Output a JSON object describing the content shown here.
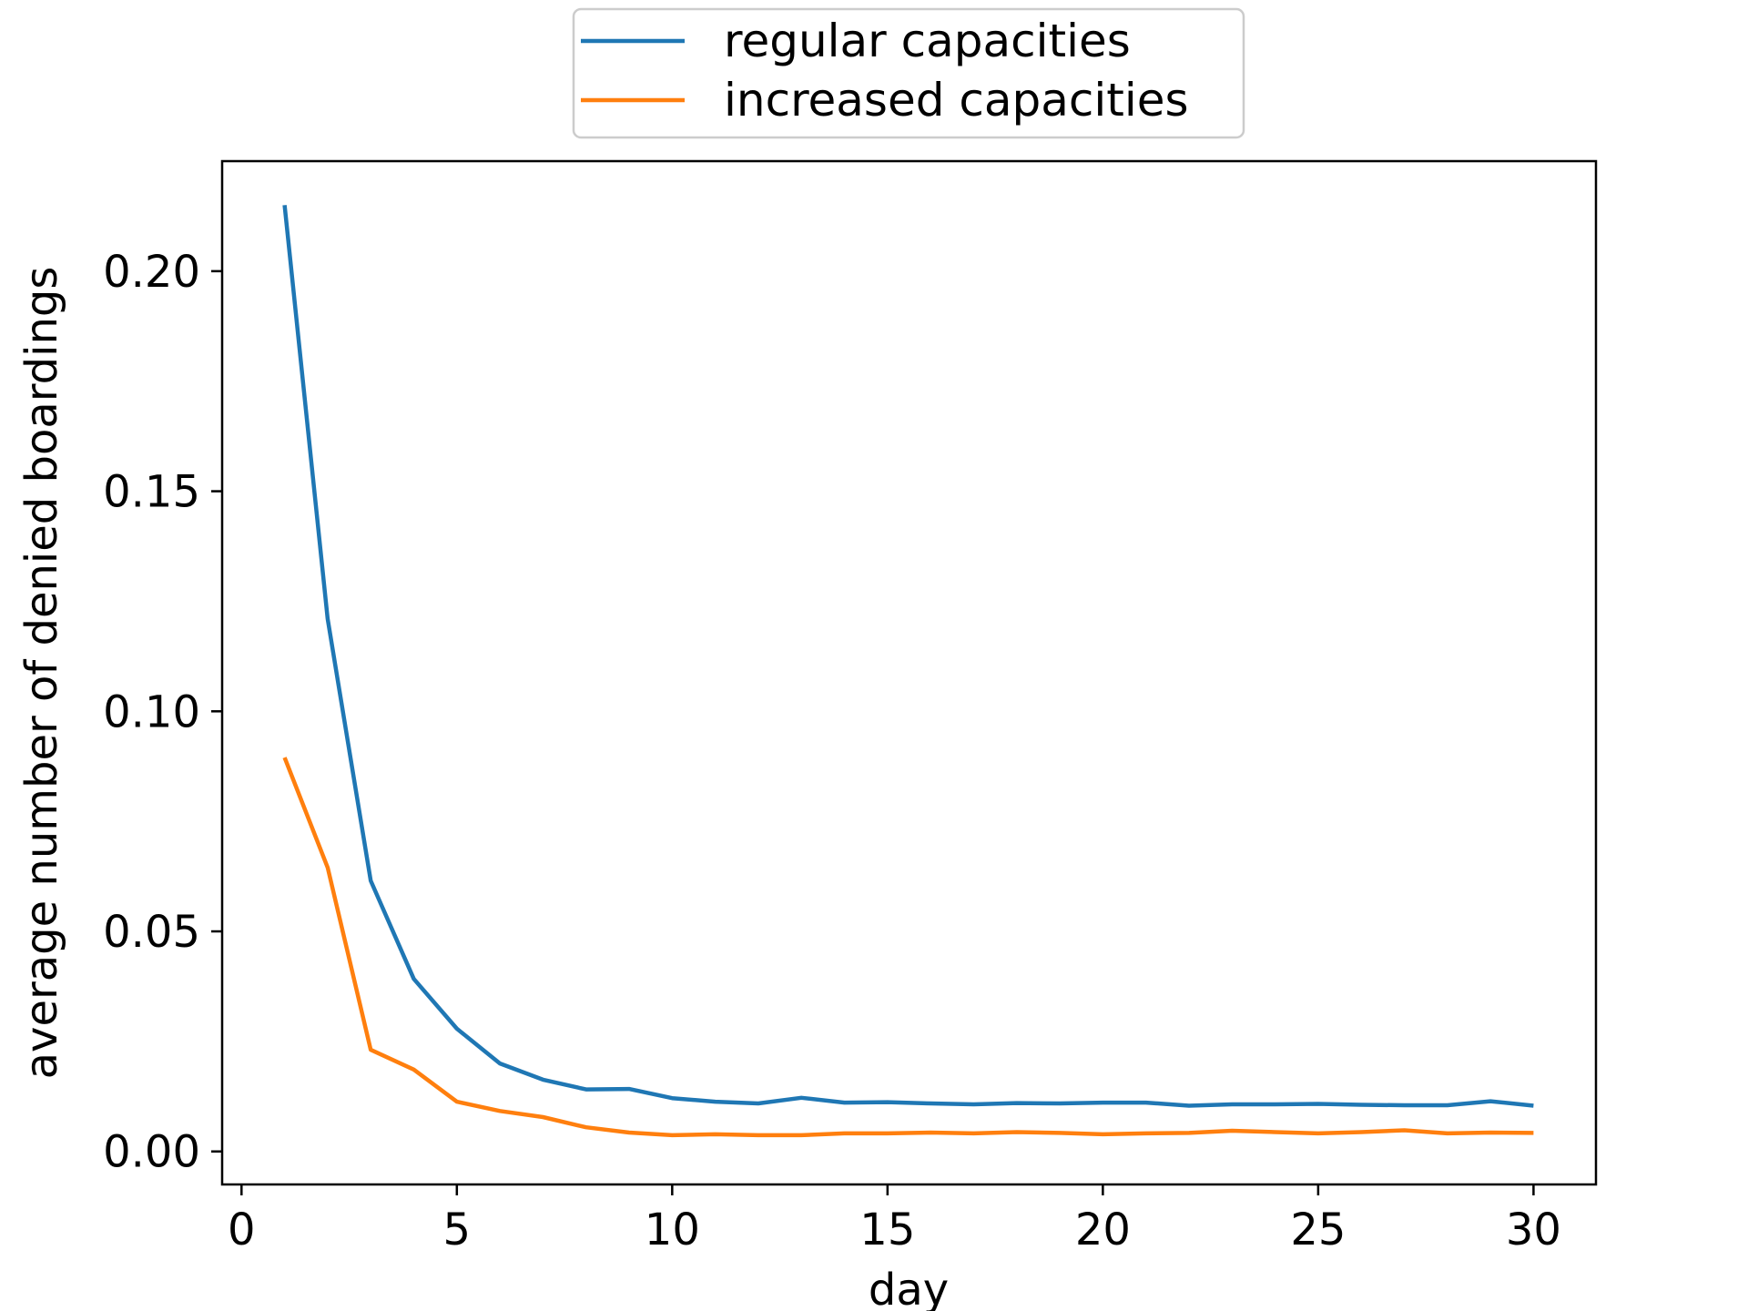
{
  "chart_data": {
    "type": "line",
    "xlabel": "day",
    "ylabel": "average number of denied boardings",
    "xlim": [
      -0.45,
      31.45
    ],
    "ylim": [
      -0.0075,
      0.225
    ],
    "xticks": [
      0,
      5,
      10,
      15,
      20,
      25,
      30
    ],
    "xtick_labels": [
      "0",
      "5",
      "10",
      "15",
      "20",
      "25",
      "30"
    ],
    "yticks": [
      0.0,
      0.05,
      0.1,
      0.15,
      0.2
    ],
    "ytick_labels": [
      "0.00",
      "0.05",
      "0.10",
      "0.15",
      "0.20"
    ],
    "grid": false,
    "legend_position": "top-center (outside plot)",
    "x": [
      1,
      2,
      3,
      4,
      5,
      6,
      7,
      8,
      9,
      10,
      11,
      12,
      13,
      14,
      15,
      16,
      17,
      18,
      19,
      20,
      21,
      22,
      23,
      24,
      25,
      26,
      27,
      28,
      29,
      30
    ],
    "series": [
      {
        "name": "regular capacities",
        "color": "#1f77b4",
        "values": [
          0.215,
          0.121,
          0.0615,
          0.0392,
          0.0279,
          0.02,
          0.0163,
          0.0141,
          0.0142,
          0.0121,
          0.0113,
          0.0109,
          0.0122,
          0.0111,
          0.0112,
          0.0109,
          0.0107,
          0.011,
          0.0109,
          0.0111,
          0.0111,
          0.0104,
          0.0107,
          0.0107,
          0.0108,
          0.0106,
          0.0105,
          0.0105,
          0.0114,
          0.0104
        ]
      },
      {
        "name": "increased capacities",
        "color": "#ff7f0e",
        "values": [
          0.0895,
          0.0645,
          0.0231,
          0.0186,
          0.0113,
          0.0092,
          0.0078,
          0.0055,
          0.0043,
          0.0037,
          0.0039,
          0.0037,
          0.0037,
          0.0041,
          0.0041,
          0.0043,
          0.0041,
          0.0044,
          0.0042,
          0.0039,
          0.0041,
          0.0042,
          0.0047,
          0.0044,
          0.0041,
          0.0044,
          0.0048,
          0.0041,
          0.0043,
          0.0042
        ]
      }
    ]
  }
}
